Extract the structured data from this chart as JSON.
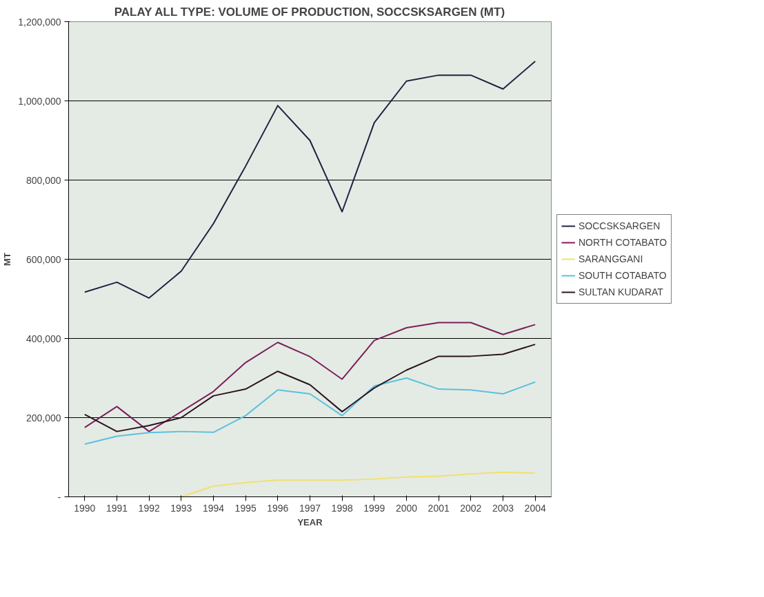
{
  "chart_data": {
    "type": "line",
    "title": "PALAY ALL TYPE: VOLUME OF PRODUCTION, SOCCSKSARGEN (MT)",
    "xlabel": "YEAR",
    "ylabel": "MT",
    "categories": [
      "1990",
      "1991",
      "1992",
      "1993",
      "1994",
      "1995",
      "1996",
      "1997",
      "1998",
      "1999",
      "2000",
      "2001",
      "2002",
      "2003",
      "2004"
    ],
    "ylim": [
      0,
      1200000
    ],
    "yticks": [
      {
        "value": 0,
        "label": "-"
      },
      {
        "value": 200000,
        "label": "200,000"
      },
      {
        "value": 400000,
        "label": "400,000"
      },
      {
        "value": 600000,
        "label": "600,000"
      },
      {
        "value": 800000,
        "label": "800,000"
      },
      {
        "value": 1000000,
        "label": "1,000,000"
      },
      {
        "value": 1200000,
        "label": "1,200,000"
      }
    ],
    "grid": "y",
    "legend": "right",
    "series": [
      {
        "name": "SOCCSKSARGEN",
        "color": "#1c2340",
        "values": [
          517000,
          542000,
          502000,
          570000,
          690000,
          835000,
          988000,
          900000,
          720000,
          945000,
          1050000,
          1065000,
          1065000,
          1030000,
          1100000
        ]
      },
      {
        "name": "NORTH COTABATO",
        "color": "#7a1f5a",
        "values": [
          175000,
          228000,
          165000,
          215000,
          266000,
          339000,
          390000,
          354000,
          297000,
          395000,
          427000,
          440000,
          440000,
          410000,
          435000
        ]
      },
      {
        "name": "SARANGGANI",
        "color": "#f0e070",
        "values": [
          null,
          null,
          null,
          0,
          27000,
          36000,
          42000,
          42000,
          42000,
          45000,
          50000,
          52000,
          58000,
          62000,
          60000
        ]
      },
      {
        "name": "SOUTH COTABATO",
        "color": "#5bc0de",
        "values": [
          133000,
          153000,
          162000,
          165000,
          163000,
          205000,
          270000,
          260000,
          205000,
          280000,
          300000,
          272000,
          270000,
          260000,
          290000
        ]
      },
      {
        "name": "SULTAN KUDARAT",
        "color": "#2a1420",
        "values": [
          208000,
          165000,
          180000,
          200000,
          255000,
          272000,
          317000,
          283000,
          215000,
          275000,
          320000,
          355000,
          355000,
          360000,
          385000
        ]
      }
    ]
  }
}
